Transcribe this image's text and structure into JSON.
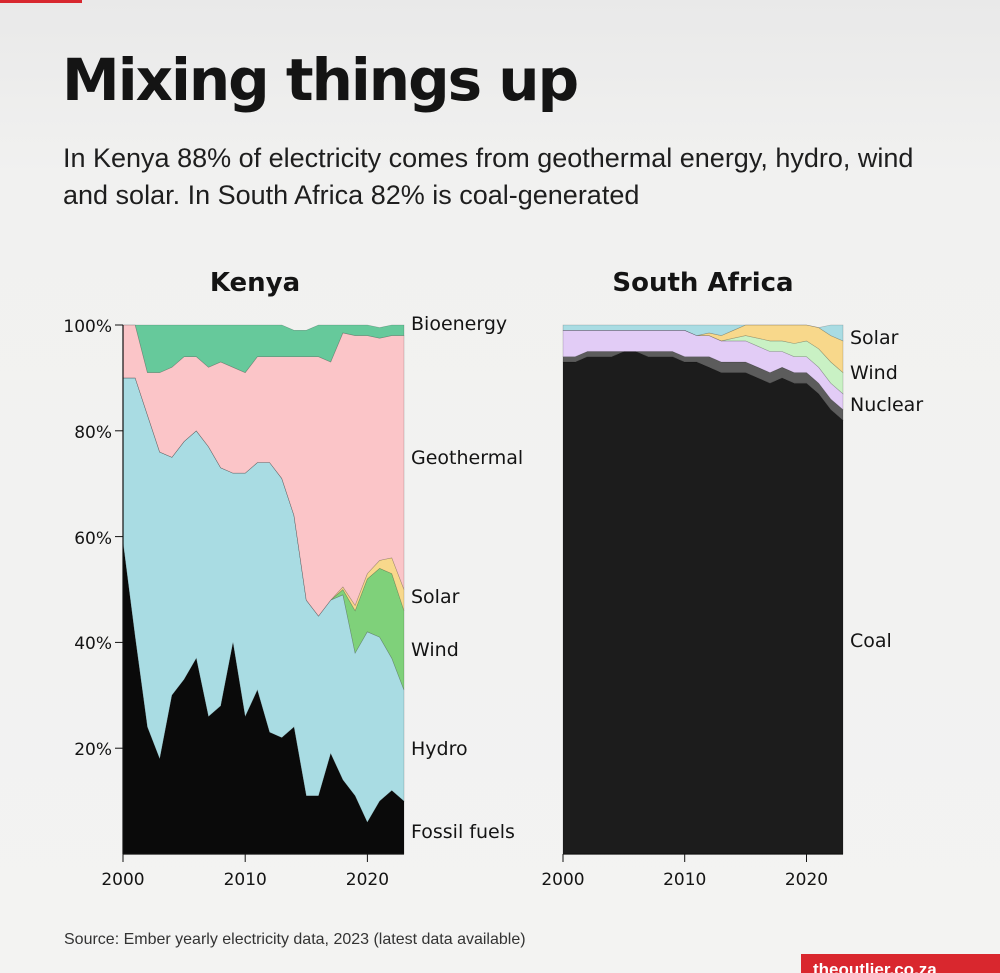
{
  "title": "Mixing things up",
  "subtitle": "In Kenya 88% of electricity comes from geothermal energy, hydro, wind and solar. In South Africa 82% is coal-generated",
  "source": "Source: Ember yearly electricity data, 2023 (latest data available)",
  "brand": "theoutlier.co.za",
  "colors": {
    "fossil": "#0a0a0a",
    "coal": "#1c1c1c",
    "nuclear": "#5c5c5c",
    "hydro": "#a9dce3",
    "wind": "#7fd17a",
    "solar": "#f8d88b",
    "geothermal": "#fbc5c8",
    "bioenergy": "#66c99b",
    "sa_hydro": "#a9dce3",
    "sa_other": "#e2ccf6",
    "sa_wind": "#c9f1c4"
  },
  "chart_data": [
    {
      "type": "area",
      "stacked": true,
      "title": "Kenya",
      "x": [
        2000,
        2001,
        2002,
        2003,
        2004,
        2005,
        2006,
        2007,
        2008,
        2009,
        2010,
        2011,
        2012,
        2013,
        2014,
        2015,
        2016,
        2017,
        2018,
        2019,
        2020,
        2021,
        2022,
        2023
      ],
      "x_ticks": [
        2000,
        2010,
        2020
      ],
      "y_ticks": [
        "100%",
        "80%",
        "60%",
        "40%",
        "20%"
      ],
      "y_tick_values": [
        100,
        80,
        60,
        40,
        20
      ],
      "ylim": [
        0,
        100
      ],
      "series": [
        {
          "name": "Fossil fuels",
          "color_key": "fossil",
          "values": [
            59,
            41,
            24,
            18,
            30,
            33,
            37,
            26,
            28,
            40,
            26,
            31,
            23,
            22,
            24,
            11,
            11,
            19,
            14,
            11,
            6,
            10,
            12,
            10
          ]
        },
        {
          "name": "Hydro",
          "color_key": "hydro",
          "values": [
            31,
            49,
            59,
            58,
            45,
            45,
            43,
            51,
            45,
            32,
            46,
            43,
            51,
            49,
            40,
            37,
            34,
            29,
            35,
            27,
            36,
            31,
            25,
            21
          ]
        },
        {
          "name": "Wind",
          "color_key": "wind",
          "values": [
            0,
            0,
            0,
            0,
            0,
            0,
            0,
            0,
            0,
            0,
            0,
            0,
            0,
            0,
            0,
            0,
            0,
            0,
            1,
            8,
            10,
            13,
            16,
            15
          ]
        },
        {
          "name": "Solar",
          "color_key": "solar",
          "values": [
            0,
            0,
            0,
            0,
            0,
            0,
            0,
            0,
            0,
            0,
            0,
            0,
            0,
            0,
            0,
            0,
            0,
            0,
            0.5,
            1,
            1,
            1.5,
            3,
            4
          ]
        },
        {
          "name": "Geothermal",
          "color_key": "geothermal",
          "values": [
            10,
            10,
            8,
            15,
            17,
            16,
            14,
            15,
            20,
            20,
            19,
            20,
            20,
            23,
            30,
            46,
            49,
            45,
            48,
            51,
            45,
            42,
            42,
            48
          ]
        },
        {
          "name": "Bioenergy",
          "color_key": "bioenergy",
          "values": [
            0,
            0,
            9,
            9,
            8,
            6,
            6,
            8,
            7,
            8,
            9,
            6,
            6,
            6,
            5,
            5,
            6,
            7,
            1.5,
            2,
            2,
            2,
            2,
            2
          ]
        }
      ]
    },
    {
      "type": "area",
      "stacked": true,
      "title": "South Africa",
      "x": [
        2000,
        2001,
        2002,
        2003,
        2004,
        2005,
        2006,
        2007,
        2008,
        2009,
        2010,
        2011,
        2012,
        2013,
        2014,
        2015,
        2016,
        2017,
        2018,
        2019,
        2020,
        2021,
        2022,
        2023
      ],
      "x_ticks": [
        2000,
        2010,
        2020
      ],
      "ylim": [
        0,
        100
      ],
      "series": [
        {
          "name": "Coal",
          "color_key": "coal",
          "values": [
            93,
            93,
            94,
            94,
            94,
            95,
            95,
            94,
            94,
            94,
            93,
            93,
            92,
            91,
            91,
            91,
            90,
            89,
            90,
            89,
            89,
            87,
            84,
            82
          ]
        },
        {
          "name": "Nuclear",
          "color_key": "nuclear",
          "values": [
            1,
            1,
            1,
            1,
            1,
            0,
            0,
            1,
            1,
            1,
            1,
            1,
            2,
            2,
            2,
            2,
            2,
            2,
            2,
            2,
            2,
            2,
            2,
            2
          ]
        },
        {
          "name": "",
          "color_key": "sa_other",
          "values": [
            5,
            5,
            4,
            4,
            4,
            4,
            4,
            4,
            4,
            4,
            5,
            4,
            4,
            4,
            4,
            4,
            4,
            4,
            3,
            3,
            3,
            3,
            3,
            3
          ]
        },
        {
          "name": "Wind",
          "color_key": "sa_wind",
          "values": [
            0,
            0,
            0,
            0,
            0,
            0,
            0,
            0,
            0,
            0,
            0,
            0,
            0,
            0,
            0.5,
            1,
            1.5,
            2,
            2,
            2.5,
            3,
            3.5,
            4,
            4
          ]
        },
        {
          "name": "Solar",
          "color_key": "solar",
          "values": [
            0,
            0,
            0,
            0,
            0,
            0,
            0,
            0,
            0,
            0,
            0,
            0,
            0.5,
            1,
            1.5,
            2,
            2.5,
            3,
            3,
            3.5,
            3,
            4,
            5,
            6
          ]
        },
        {
          "name": "",
          "color_key": "sa_hydro",
          "values": [
            1,
            1,
            1,
            1,
            1,
            1,
            1,
            1,
            1,
            1,
            1,
            2,
            1.5,
            2,
            1,
            0,
            0,
            0,
            0,
            0,
            0,
            0,
            2,
            3
          ]
        }
      ]
    }
  ]
}
